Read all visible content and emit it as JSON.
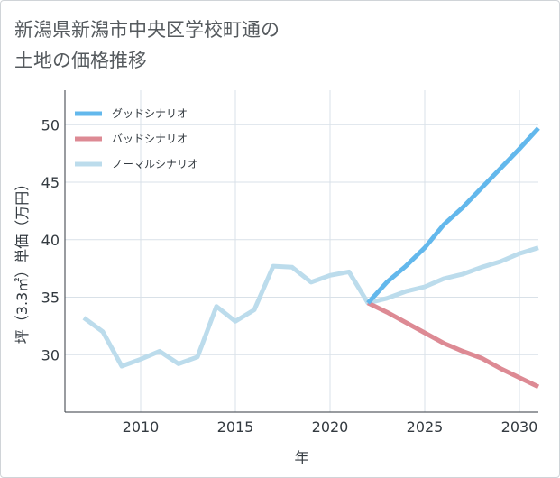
{
  "title": {
    "line1": "新潟県新潟市中央区学校町通の",
    "line2": "土地の価格推移"
  },
  "chart_data": {
    "type": "line",
    "xlabel": "年",
    "ylabel": "坪（3.3㎡）単価（万円）",
    "xlim": [
      2006,
      2031
    ],
    "ylim": [
      25,
      53
    ],
    "x_ticks": [
      2010,
      2015,
      2020,
      2025,
      2030
    ],
    "y_ticks": [
      30,
      35,
      40,
      45,
      50
    ],
    "grid": true,
    "legend_position": "top-left",
    "series": [
      {
        "name": "グッドシナリオ",
        "color": "#63b8ec",
        "x": [
          2022,
          2023,
          2024,
          2025,
          2026,
          2027,
          2028,
          2029,
          2030,
          2031
        ],
        "y": [
          34.5,
          36.3,
          37.7,
          39.3,
          41.3,
          42.8,
          44.5,
          46.2,
          47.9,
          49.7
        ]
      },
      {
        "name": "バッドシナリオ",
        "color": "#dd8a94",
        "x": [
          2022,
          2023,
          2024,
          2025,
          2026,
          2027,
          2028,
          2029,
          2030,
          2031
        ],
        "y": [
          34.5,
          33.7,
          32.8,
          31.9,
          31.0,
          30.3,
          29.7,
          28.8,
          28.0,
          27.2
        ]
      },
      {
        "name": "ノーマルシナリオ",
        "color": "#bcdcec",
        "x": [
          2007,
          2008,
          2009,
          2010,
          2011,
          2012,
          2013,
          2014,
          2015,
          2016,
          2017,
          2018,
          2019,
          2020,
          2021,
          2022,
          2023,
          2024,
          2025,
          2026,
          2027,
          2028,
          2029,
          2030,
          2031
        ],
        "y": [
          33.2,
          32.0,
          29.0,
          29.6,
          30.3,
          29.2,
          29.8,
          34.2,
          32.9,
          33.9,
          37.7,
          37.6,
          36.3,
          36.9,
          37.2,
          34.5,
          34.9,
          35.5,
          35.9,
          36.6,
          37.0,
          37.6,
          38.1,
          38.8,
          39.3
        ]
      }
    ]
  }
}
